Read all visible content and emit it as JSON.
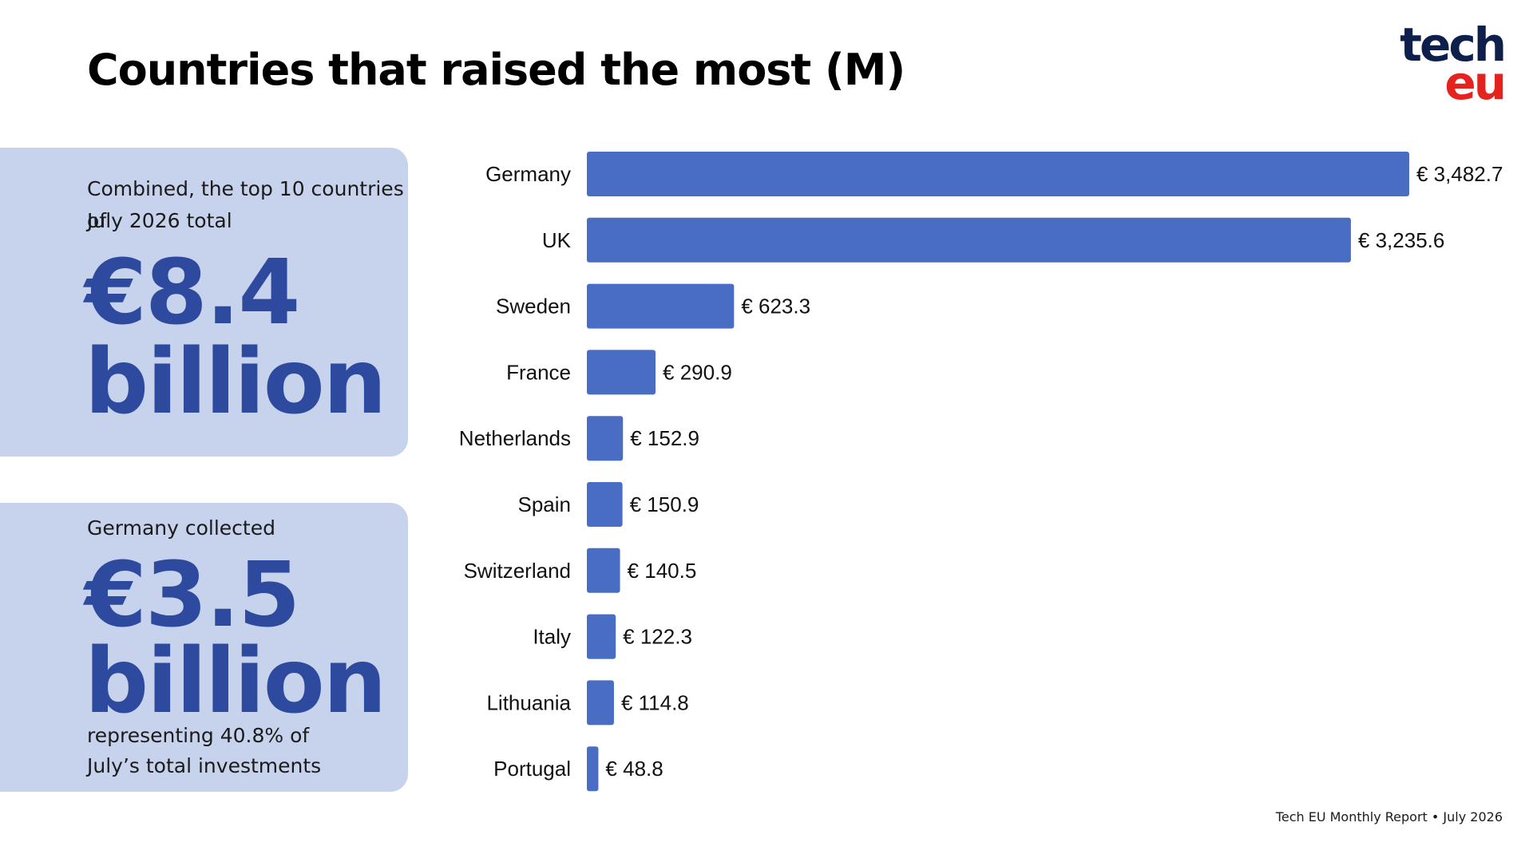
{
  "header": {
    "title": "Countries that raised the most (M)",
    "logo_top": "tech",
    "logo_bottom": "eu"
  },
  "colors": {
    "bar": "#4a6dc4",
    "card_bg": "#c7d2ec",
    "big_text": "#2e4a9e",
    "logo_navy": "#0d1f4a",
    "logo_red": "#e4231f"
  },
  "card_total": {
    "intro_line1": "Combined, the top 10 countries of",
    "intro_line2": "July 2026 total",
    "amount": "€8.4",
    "unit": "billion"
  },
  "card_germany": {
    "intro": "Germany collected",
    "amount": "€3.5",
    "unit": "billion",
    "outro_line1": "representing 40.8% of",
    "outro_line2": "July’s total investments"
  },
  "chart_data": {
    "type": "bar",
    "orientation": "horizontal",
    "categories": [
      "Germany",
      "UK",
      "Sweden",
      "France",
      "Netherlands",
      "Spain",
      "Switzerland",
      "Italy",
      "Lithuania",
      "Portugal"
    ],
    "values": [
      3482.7,
      3235.6,
      623.3,
      290.9,
      152.9,
      150.9,
      140.5,
      122.3,
      114.8,
      48.8
    ],
    "labels": [
      "€ 3,482.7",
      "€ 3,235.6",
      "€ 623.3",
      "€ 290.9",
      "€ 152.9",
      "€ 150.9",
      "€ 140.5",
      "€ 122.3",
      "€ 114.8",
      "€ 48.8"
    ],
    "title": "",
    "xlabel": "",
    "ylabel": "",
    "xlim": [
      0,
      3482.7
    ],
    "grid": false,
    "legend": false
  },
  "footer": {
    "text": "Tech EU Monthly Report • July 2026"
  }
}
